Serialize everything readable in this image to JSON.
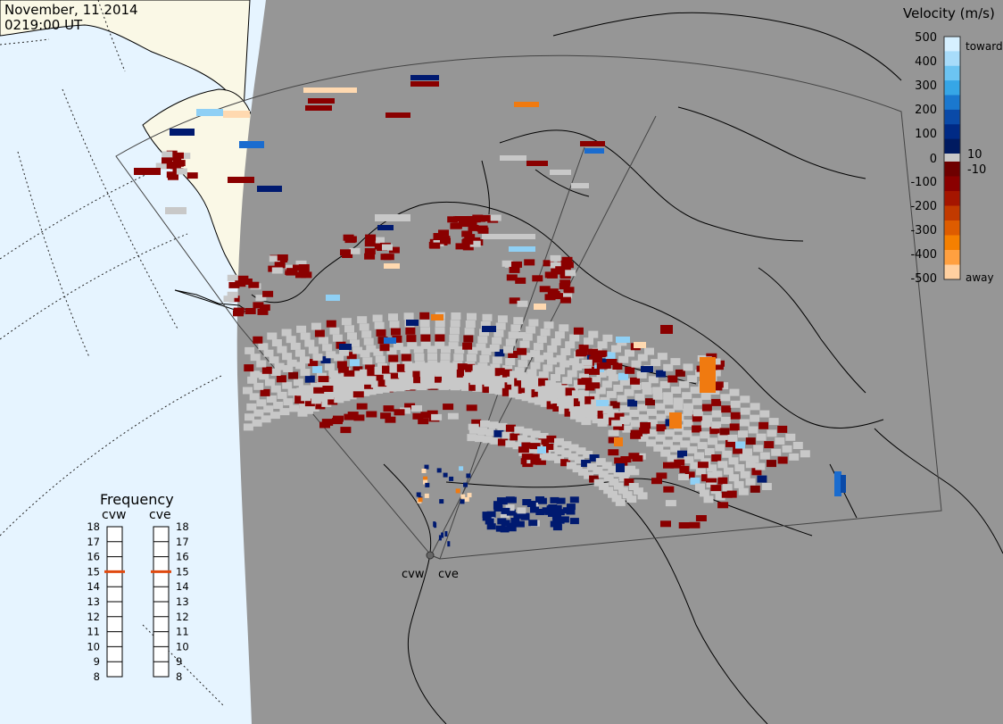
{
  "header": {
    "date": "November, 11 2014",
    "time": "0219:00 UT"
  },
  "velocity_legend": {
    "title": "Velocity (m/s)",
    "ticks": [
      "500",
      "400",
      "300",
      "200",
      "100",
      "10",
      "0",
      "-10",
      "-100",
      "-200",
      "-300",
      "-400",
      "-500"
    ],
    "toward_label": "toward",
    "away_label": "away",
    "colors_toward": [
      "#d6f0ff",
      "#a8dcfa",
      "#6cc4f2",
      "#36a6e6",
      "#1a78cf",
      "#0a4aa8",
      "#002a85",
      "#001a60"
    ],
    "colors_away": [
      "#6e0000",
      "#8a0000",
      "#a51500",
      "#c23a00",
      "#de5c00",
      "#f58000",
      "#ffa040",
      "#ffd0a0"
    ]
  },
  "frequency": {
    "title": "Frequency",
    "radars": [
      "cvw",
      "cve"
    ],
    "scale": [
      "18",
      "17",
      "16",
      "15",
      "14",
      "13",
      "12",
      "11",
      "10",
      "9",
      "8"
    ],
    "cvw_mhz": 15,
    "cve_mhz": 15,
    "marker_color": "#e04a10"
  },
  "stations": {
    "cvw": "cvw",
    "cve": "cve"
  },
  "colors": {
    "land_lit": "#faf8e6",
    "ocean_lit": "#e6f4ff",
    "night": "#969696",
    "ground_scatter": "#c8c8c8"
  }
}
